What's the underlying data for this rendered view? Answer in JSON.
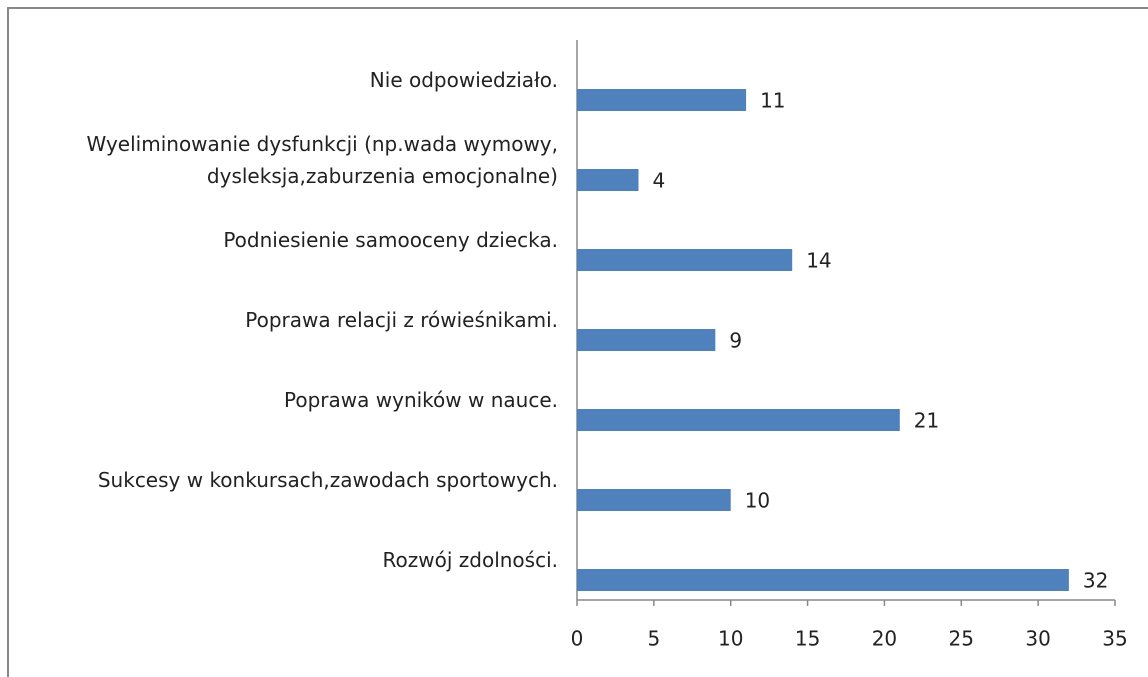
{
  "chart_data": {
    "type": "bar",
    "orientation": "horizontal",
    "categories": [
      "Nie odpowiedziało.",
      "Wyeliminowanie dysfunkcji (np.wada wymowy,\ndysleksja,zaburzenia emocjonalne)",
      "Podniesienie samooceny dziecka.",
      "Poprawa relacji z rówieśnikami.",
      "Poprawa wyników w nauce.",
      "Sukcesy w konkursach,zawodach sportowych.",
      "Rozwój zdolności."
    ],
    "values": [
      11,
      4,
      14,
      9,
      21,
      10,
      32
    ],
    "color": "#4f81bd",
    "xlim": [
      0,
      35
    ],
    "xticks": [
      0,
      5,
      10,
      15,
      20,
      25,
      30,
      35
    ],
    "grid": false
  }
}
